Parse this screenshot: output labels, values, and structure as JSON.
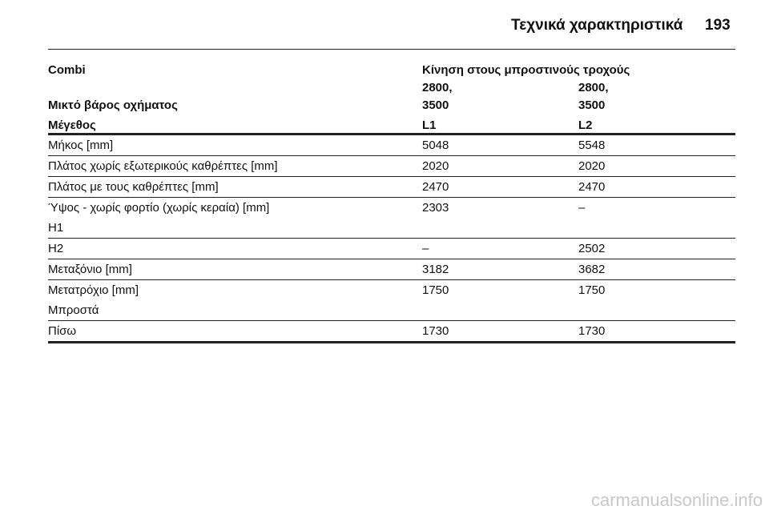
{
  "header": {
    "title": "Τεχνικά χαρακτηριστικά",
    "page_number": "193"
  },
  "table": {
    "head": [
      [
        [
          "Combi"
        ],
        [
          "Κίνηση στους μπροστινούς τροχούς"
        ]
      ],
      [
        [
          "Μικτό βάρος οχήματος"
        ],
        [
          "2800,",
          "3500"
        ],
        [
          "2800,",
          "3500"
        ]
      ],
      [
        [
          "Μέγεθος"
        ],
        [
          "L1"
        ],
        [
          "L2"
        ]
      ]
    ],
    "rows": [
      [
        [
          "Μήκος [mm]"
        ],
        [
          "5048"
        ],
        [
          "5548"
        ]
      ],
      [
        [
          "Πλάτος χωρίς εξωτερικούς καθρέπτες [mm]"
        ],
        [
          "2020"
        ],
        [
          "2020"
        ]
      ],
      [
        [
          "Πλάτος με τους καθρέπτες [mm]"
        ],
        [
          "2470"
        ],
        [
          "2470"
        ]
      ],
      [
        [
          "Ύψος - χωρίς φορτίο (χωρίς κεραία) [mm]",
          "H1"
        ],
        [
          "2303"
        ],
        [
          "–"
        ]
      ],
      [
        [
          "H2"
        ],
        [
          "–"
        ],
        [
          "2502"
        ]
      ],
      [
        [
          "Μεταξόνιο [mm]"
        ],
        [
          "3182"
        ],
        [
          "3682"
        ]
      ],
      [
        [
          "Μετατρόχιο [mm]",
          "Μπροστά"
        ],
        [
          "1750"
        ],
        [
          "1750"
        ]
      ],
      [
        [
          "Πίσω"
        ],
        [
          "1730"
        ],
        [
          "1730"
        ]
      ]
    ]
  },
  "watermark": "carmanualsonline.info"
}
